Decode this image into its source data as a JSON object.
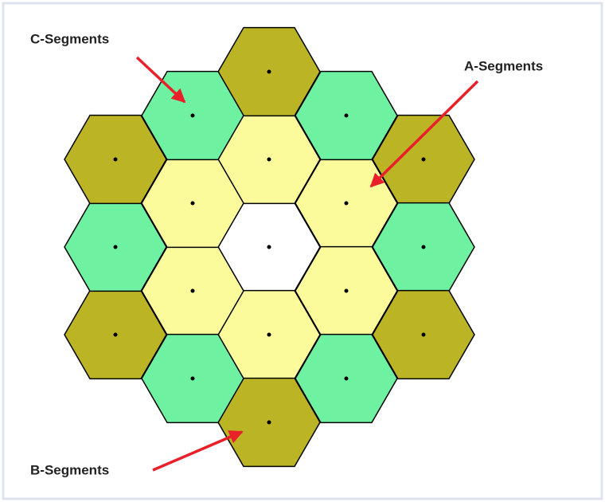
{
  "labels": {
    "c_segments": "C-Segments",
    "a_segments": "A-Segments",
    "b_segments": "B-Segments"
  }
}
